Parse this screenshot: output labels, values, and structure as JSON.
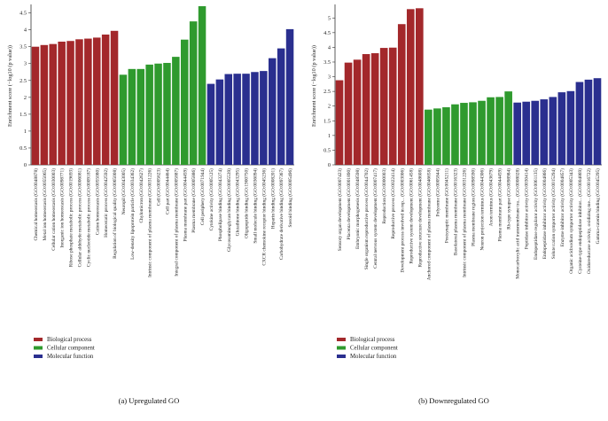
{
  "colors": {
    "biological": "#a3282b",
    "cellular": "#2f9a2e",
    "molecular": "#2a2f8f",
    "axis": "#333333"
  },
  "legend": [
    {
      "key": "biological",
      "label": "Biological process"
    },
    {
      "key": "cellular",
      "label": "Cellular component"
    },
    {
      "key": "molecular",
      "label": "Molecular function"
    }
  ],
  "chart_data": [
    {
      "type": "bar",
      "title": "(a)  Upregulated GO",
      "ylabel": "Enrichment score (−log10 (p value))",
      "xlabel": "",
      "ylim": [
        0,
        4.7
      ],
      "yticks": [
        0,
        0.5,
        1,
        1.5,
        2,
        2.5,
        3,
        3.5,
        4,
        4.5
      ],
      "ytick_labels": [
        "0",
        "0.5",
        "1",
        "1.5",
        "2",
        "2.5",
        "3",
        "3.5",
        "4",
        "4.5"
      ],
      "categories": [
        "Chemical homeostasis (GO:0048878)",
        "Metal ion homeostasis (GO:0055065)",
        "Cellular cation homeostasis (GO:0030003)",
        "Inorganic ion homeostasis (GO:0098771)",
        "Ribose phosphate metabolic process (GO:0019693)",
        "Cellular aldehyde metabolic process (GO:0006081)",
        "Cyclic nucleotide metabolic process (GO:0009187)",
        "Cation homeostasis (GO:0055080)",
        "Homeostatic process (GO:0042592)",
        "Regulation of biological quality (GO:0065008)",
        "Neuropil (GO:0043005)",
        "Low-density lipoprotein particle (GO:0034362)",
        "Chylomicron (GO:0042627)",
        "Intrinsic component of plasma membrane (GO:0031226)",
        "Cell (GO:0005623)",
        "Cell part (GO:0044464)",
        "Integral component of plasma membrane (GO:0005887)",
        "Plasma membrane part (GO:0044459)",
        "Plasma membrane (GO:0005886)",
        "Cell periphery (GO:0071944)",
        "Cytokine activity (GO:0005125)",
        "Phospholipase binding (GO:0043274)",
        "Glycosaminoglycan binding (GO:0005539)",
        "Glutathione binding (GO:0043295)",
        "Oligopeptide binding (GO:1900750)",
        "Small molecule binding (GO:0036094)",
        "CXCR chemokine receptor binding (GO:0045236)",
        "Heparin binding (GO:0008201)",
        "Carbohydrate derivative binding (GO:0097367)",
        "Steroid binding (GO:0005496)"
      ],
      "groups": [
        "biological",
        "biological",
        "biological",
        "biological",
        "biological",
        "biological",
        "biological",
        "biological",
        "biological",
        "biological",
        "cellular",
        "cellular",
        "cellular",
        "cellular",
        "cellular",
        "cellular",
        "cellular",
        "cellular",
        "cellular",
        "cellular",
        "molecular",
        "molecular",
        "molecular",
        "molecular",
        "molecular",
        "molecular",
        "molecular",
        "molecular",
        "molecular",
        "molecular"
      ],
      "values": [
        3.5,
        3.55,
        3.58,
        3.65,
        3.67,
        3.72,
        3.74,
        3.77,
        3.86,
        3.97,
        2.67,
        2.84,
        2.84,
        2.97,
        3.0,
        3.02,
        3.2,
        3.71,
        4.25,
        4.7,
        2.4,
        2.53,
        2.69,
        2.7,
        2.7,
        2.75,
        2.78,
        3.16,
        3.45,
        4.02
      ]
    },
    {
      "type": "bar",
      "title": "(b)  Downregulated GO",
      "ylabel": "Enrichment score (−log10 (p value))",
      "xlabel": "",
      "ylim": [
        0,
        5.4
      ],
      "yticks": [
        0,
        0.5,
        1,
        1.5,
        2,
        2.5,
        3,
        3.5,
        4,
        4.5,
        5
      ],
      "ytick_labels": [
        "0",
        "0.5",
        "1",
        "1.5",
        "2",
        "2.5",
        "3",
        "3.5",
        "4",
        "4.5",
        "5"
      ],
      "categories": [
        "Sensory organ development (GO:0007423)",
        "Placenta development (GO:0001890)",
        "Embryonic morphogenesis (GO:0048598)",
        "Single organism reproductive process (GO:0044702)",
        "Central nervous system development (GO:0007417)",
        "Reproduction (GO:0000003)",
        "Reproductive process (GO:0022414)",
        "Development process involved in rep... (GO:0003006)",
        "Reproductive system development (GO:0061458)",
        "Reproductive structure development (GO:0048608)",
        "Anchored component of plasma membrane (GO:0046658)",
        "Polysome (GO:0005844)",
        "Postsynaptic membrane (GO:0045211)",
        "Basolateral plasma membrane (GO:0016323)",
        "Intrinsic component of plasma membrane (GO:0031226)",
        "Plasma membrane region (GO:0098590)",
        "Neuron projection terminus (GO:0044306)",
        "Axon terminus (GO:0043679)",
        "Plasma membrane part (GO:0044459)",
        "Rb-type synapse (GO:0098984)",
        "Monocarboxylic acid transmembrane tra... (GO:0008028)",
        "Peptidase inhibitor activity (GO:0030414)",
        "Endopeptidase regulator activity (GO:0061135)",
        "Endopeptidase inhibitor activity (GO:0004866)",
        "Solute:cation symporter activity (GO:0015294)",
        "Enzyme inhibitor activity (GO:0004857)",
        "Organic acid:sodium symporter activity (GO:0005343)",
        "Cysteine-type endopeptidase inhibitor... (GO:0004869)",
        "Oxidoreductase activity, oxidizing me... (GO:0016722)",
        "Gamma-catenin binding (GO:0045295)"
      ],
      "groups": [
        "biological",
        "biological",
        "biological",
        "biological",
        "biological",
        "biological",
        "biological",
        "biological",
        "biological",
        "biological",
        "cellular",
        "cellular",
        "cellular",
        "cellular",
        "cellular",
        "cellular",
        "cellular",
        "cellular",
        "cellular",
        "cellular",
        "molecular",
        "molecular",
        "molecular",
        "molecular",
        "molecular",
        "molecular",
        "molecular",
        "molecular",
        "molecular",
        "molecular"
      ],
      "values": [
        2.88,
        3.48,
        3.58,
        3.77,
        3.8,
        3.98,
        3.99,
        4.79,
        5.3,
        5.33,
        1.88,
        1.92,
        1.96,
        2.06,
        2.11,
        2.13,
        2.18,
        2.3,
        2.31,
        2.5,
        2.12,
        2.15,
        2.18,
        2.23,
        2.31,
        2.47,
        2.51,
        2.82,
        2.9,
        2.95
      ]
    }
  ]
}
